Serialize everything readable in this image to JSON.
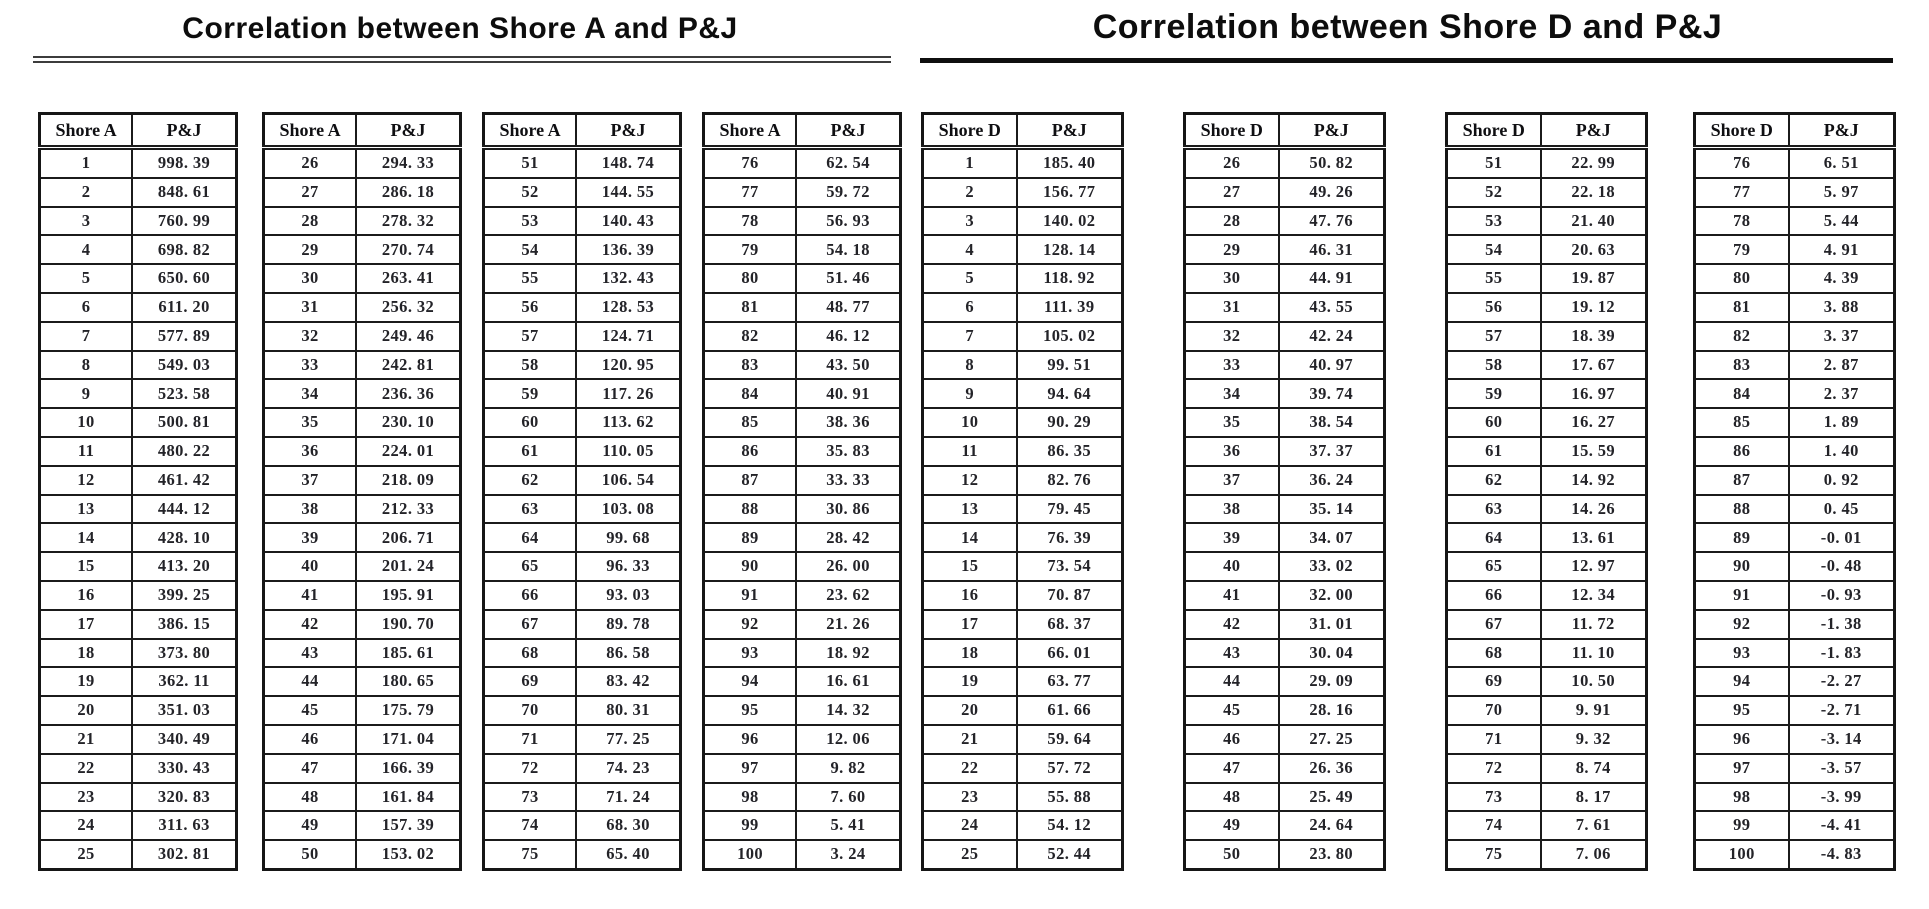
{
  "colors": {
    "background": "#ffffff",
    "text": "#1b1b1b",
    "border": "#161616"
  },
  "sections": [
    {
      "id": "shore-a",
      "title": "Correlation between Shore A and P&J",
      "underline": "double",
      "columns": [
        "Shore A",
        "P&J"
      ],
      "tables": [
        {
          "rows": [
            [
              "1",
              "998. 39"
            ],
            [
              "2",
              "848. 61"
            ],
            [
              "3",
              "760. 99"
            ],
            [
              "4",
              "698. 82"
            ],
            [
              "5",
              "650. 60"
            ],
            [
              "6",
              "611. 20"
            ],
            [
              "7",
              "577. 89"
            ],
            [
              "8",
              "549. 03"
            ],
            [
              "9",
              "523. 58"
            ],
            [
              "10",
              "500. 81"
            ],
            [
              "11",
              "480. 22"
            ],
            [
              "12",
              "461. 42"
            ],
            [
              "13",
              "444. 12"
            ],
            [
              "14",
              "428. 10"
            ],
            [
              "15",
              "413. 20"
            ],
            [
              "16",
              "399. 25"
            ],
            [
              "17",
              "386. 15"
            ],
            [
              "18",
              "373. 80"
            ],
            [
              "19",
              "362. 11"
            ],
            [
              "20",
              "351. 03"
            ],
            [
              "21",
              "340. 49"
            ],
            [
              "22",
              "330. 43"
            ],
            [
              "23",
              "320. 83"
            ],
            [
              "24",
              "311. 63"
            ],
            [
              "25",
              "302. 81"
            ]
          ]
        },
        {
          "rows": [
            [
              "26",
              "294. 33"
            ],
            [
              "27",
              "286. 18"
            ],
            [
              "28",
              "278. 32"
            ],
            [
              "29",
              "270. 74"
            ],
            [
              "30",
              "263. 41"
            ],
            [
              "31",
              "256. 32"
            ],
            [
              "32",
              "249. 46"
            ],
            [
              "33",
              "242. 81"
            ],
            [
              "34",
              "236. 36"
            ],
            [
              "35",
              "230. 10"
            ],
            [
              "36",
              "224. 01"
            ],
            [
              "37",
              "218. 09"
            ],
            [
              "38",
              "212. 33"
            ],
            [
              "39",
              "206. 71"
            ],
            [
              "40",
              "201. 24"
            ],
            [
              "41",
              "195. 91"
            ],
            [
              "42",
              "190. 70"
            ],
            [
              "43",
              "185. 61"
            ],
            [
              "44",
              "180. 65"
            ],
            [
              "45",
              "175. 79"
            ],
            [
              "46",
              "171. 04"
            ],
            [
              "47",
              "166. 39"
            ],
            [
              "48",
              "161. 84"
            ],
            [
              "49",
              "157. 39"
            ],
            [
              "50",
              "153. 02"
            ]
          ]
        },
        {
          "rows": [
            [
              "51",
              "148. 74"
            ],
            [
              "52",
              "144. 55"
            ],
            [
              "53",
              "140. 43"
            ],
            [
              "54",
              "136. 39"
            ],
            [
              "55",
              "132. 43"
            ],
            [
              "56",
              "128. 53"
            ],
            [
              "57",
              "124. 71"
            ],
            [
              "58",
              "120. 95"
            ],
            [
              "59",
              "117. 26"
            ],
            [
              "60",
              "113. 62"
            ],
            [
              "61",
              "110. 05"
            ],
            [
              "62",
              "106. 54"
            ],
            [
              "63",
              "103. 08"
            ],
            [
              "64",
              "99. 68"
            ],
            [
              "65",
              "96. 33"
            ],
            [
              "66",
              "93. 03"
            ],
            [
              "67",
              "89. 78"
            ],
            [
              "68",
              "86. 58"
            ],
            [
              "69",
              "83. 42"
            ],
            [
              "70",
              "80. 31"
            ],
            [
              "71",
              "77. 25"
            ],
            [
              "72",
              "74. 23"
            ],
            [
              "73",
              "71. 24"
            ],
            [
              "74",
              "68. 30"
            ],
            [
              "75",
              "65. 40"
            ]
          ]
        },
        {
          "rows": [
            [
              "76",
              "62. 54"
            ],
            [
              "77",
              "59. 72"
            ],
            [
              "78",
              "56. 93"
            ],
            [
              "79",
              "54. 18"
            ],
            [
              "80",
              "51. 46"
            ],
            [
              "81",
              "48. 77"
            ],
            [
              "82",
              "46. 12"
            ],
            [
              "83",
              "43. 50"
            ],
            [
              "84",
              "40. 91"
            ],
            [
              "85",
              "38. 36"
            ],
            [
              "86",
              "35. 83"
            ],
            [
              "87",
              "33. 33"
            ],
            [
              "88",
              "30. 86"
            ],
            [
              "89",
              "28. 42"
            ],
            [
              "90",
              "26. 00"
            ],
            [
              "91",
              "23. 62"
            ],
            [
              "92",
              "21. 26"
            ],
            [
              "93",
              "18. 92"
            ],
            [
              "94",
              "16. 61"
            ],
            [
              "95",
              "14. 32"
            ],
            [
              "96",
              "12. 06"
            ],
            [
              "97",
              "9. 82"
            ],
            [
              "98",
              "7. 60"
            ],
            [
              "99",
              "5. 41"
            ],
            [
              "100",
              "3. 24"
            ]
          ]
        }
      ]
    },
    {
      "id": "shore-d",
      "title": "Correlation between Shore D and P&J",
      "underline": "single",
      "columns": [
        "Shore D",
        "P&J"
      ],
      "tables": [
        {
          "rows": [
            [
              "1",
              "185. 40"
            ],
            [
              "2",
              "156. 77"
            ],
            [
              "3",
              "140. 02"
            ],
            [
              "4",
              "128. 14"
            ],
            [
              "5",
              "118. 92"
            ],
            [
              "6",
              "111. 39"
            ],
            [
              "7",
              "105. 02"
            ],
            [
              "8",
              "99. 51"
            ],
            [
              "9",
              "94. 64"
            ],
            [
              "10",
              "90. 29"
            ],
            [
              "11",
              "86. 35"
            ],
            [
              "12",
              "82. 76"
            ],
            [
              "13",
              "79. 45"
            ],
            [
              "14",
              "76. 39"
            ],
            [
              "15",
              "73. 54"
            ],
            [
              "16",
              "70. 87"
            ],
            [
              "17",
              "68. 37"
            ],
            [
              "18",
              "66. 01"
            ],
            [
              "19",
              "63. 77"
            ],
            [
              "20",
              "61. 66"
            ],
            [
              "21",
              "59. 64"
            ],
            [
              "22",
              "57. 72"
            ],
            [
              "23",
              "55. 88"
            ],
            [
              "24",
              "54. 12"
            ],
            [
              "25",
              "52. 44"
            ]
          ]
        },
        {
          "rows": [
            [
              "26",
              "50. 82"
            ],
            [
              "27",
              "49. 26"
            ],
            [
              "28",
              "47. 76"
            ],
            [
              "29",
              "46. 31"
            ],
            [
              "30",
              "44. 91"
            ],
            [
              "31",
              "43. 55"
            ],
            [
              "32",
              "42. 24"
            ],
            [
              "33",
              "40. 97"
            ],
            [
              "34",
              "39. 74"
            ],
            [
              "35",
              "38. 54"
            ],
            [
              "36",
              "37. 37"
            ],
            [
              "37",
              "36. 24"
            ],
            [
              "38",
              "35. 14"
            ],
            [
              "39",
              "34. 07"
            ],
            [
              "40",
              "33. 02"
            ],
            [
              "41",
              "32. 00"
            ],
            [
              "42",
              "31. 01"
            ],
            [
              "43",
              "30. 04"
            ],
            [
              "44",
              "29. 09"
            ],
            [
              "45",
              "28. 16"
            ],
            [
              "46",
              "27. 25"
            ],
            [
              "47",
              "26. 36"
            ],
            [
              "48",
              "25. 49"
            ],
            [
              "49",
              "24. 64"
            ],
            [
              "50",
              "23. 80"
            ]
          ]
        },
        {
          "rows": [
            [
              "51",
              "22. 99"
            ],
            [
              "52",
              "22. 18"
            ],
            [
              "53",
              "21. 40"
            ],
            [
              "54",
              "20. 63"
            ],
            [
              "55",
              "19. 87"
            ],
            [
              "56",
              "19. 12"
            ],
            [
              "57",
              "18. 39"
            ],
            [
              "58",
              "17. 67"
            ],
            [
              "59",
              "16. 97"
            ],
            [
              "60",
              "16. 27"
            ],
            [
              "61",
              "15. 59"
            ],
            [
              "62",
              "14. 92"
            ],
            [
              "63",
              "14. 26"
            ],
            [
              "64",
              "13. 61"
            ],
            [
              "65",
              "12. 97"
            ],
            [
              "66",
              "12. 34"
            ],
            [
              "67",
              "11. 72"
            ],
            [
              "68",
              "11. 10"
            ],
            [
              "69",
              "10. 50"
            ],
            [
              "70",
              "9. 91"
            ],
            [
              "71",
              "9. 32"
            ],
            [
              "72",
              "8. 74"
            ],
            [
              "73",
              "8. 17"
            ],
            [
              "74",
              "7. 61"
            ],
            [
              "75",
              "7. 06"
            ]
          ]
        },
        {
          "rows": [
            [
              "76",
              "6. 51"
            ],
            [
              "77",
              "5. 97"
            ],
            [
              "78",
              "5. 44"
            ],
            [
              "79",
              "4. 91"
            ],
            [
              "80",
              "4. 39"
            ],
            [
              "81",
              "3. 88"
            ],
            [
              "82",
              "3. 37"
            ],
            [
              "83",
              "2. 87"
            ],
            [
              "84",
              "2. 37"
            ],
            [
              "85",
              "1. 89"
            ],
            [
              "86",
              "1. 40"
            ],
            [
              "87",
              "0. 92"
            ],
            [
              "88",
              "0. 45"
            ],
            [
              "89",
              "-0. 01"
            ],
            [
              "90",
              "-0. 48"
            ],
            [
              "91",
              "-0. 93"
            ],
            [
              "92",
              "-1. 38"
            ],
            [
              "93",
              "-1. 83"
            ],
            [
              "94",
              "-2. 27"
            ],
            [
              "95",
              "-2. 71"
            ],
            [
              "96",
              "-3. 14"
            ],
            [
              "97",
              "-3. 57"
            ],
            [
              "98",
              "-3. 99"
            ],
            [
              "99",
              "-4. 41"
            ],
            [
              "100",
              "-4. 83"
            ]
          ]
        }
      ]
    }
  ]
}
